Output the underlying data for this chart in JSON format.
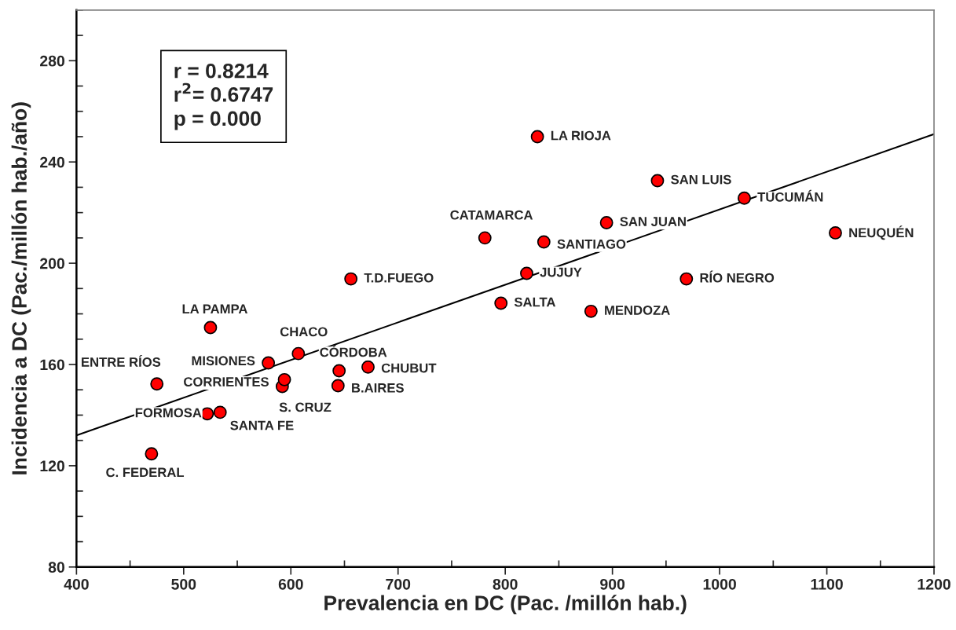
{
  "chart_data": {
    "type": "scatter",
    "xlabel": "Prevalencia en DC (Pac. /millón hab.)",
    "ylabel": "Incidencia a DC (Pac./millón hab./año)",
    "annotations": [
      "r = 0.8214\nr$^{2}$= 0.6747\np = 0.000"
    ],
    "xlim": [
      400,
      1200
    ],
    "ylim": [
      80,
      300
    ],
    "xticks": [
      400,
      {
        "value": 450,
        "label": null
      },
      500,
      {
        "value": 550,
        "label": null
      },
      600,
      {
        "value": 650,
        "label": null
      },
      700,
      {
        "value": 750,
        "label": null
      },
      800,
      {
        "value": 850,
        "label": null
      },
      900,
      {
        "value": 950,
        "label": null
      },
      1000,
      {
        "value": 1050,
        "label": null
      },
      1100,
      {
        "value": 1150,
        "label": null
      },
      1200
    ],
    "yticks": [
      80,
      {
        "value": 90,
        "label": null
      },
      {
        "value": 100,
        "label": null
      },
      {
        "value": 110,
        "label": null
      },
      120,
      {
        "value": 130,
        "label": null
      },
      {
        "value": 140,
        "label": null
      },
      {
        "value": 150,
        "label": null
      },
      160,
      {
        "value": 170,
        "label": null
      },
      {
        "value": 180,
        "label": null
      },
      {
        "value": 190,
        "label": null
      },
      200,
      {
        "value": 210,
        "label": null
      },
      {
        "value": 220,
        "label": null
      },
      {
        "value": 230,
        "label": null
      },
      240,
      {
        "value": 250,
        "label": null
      },
      {
        "value": 260,
        "label": null
      },
      {
        "value": 270,
        "label": null
      },
      280,
      {
        "value": 290,
        "label": null
      },
      {
        "value": 300,
        "label": null
      }
    ],
    "grid": false,
    "legend": false,
    "series": [
      {
        "color": "#ff0000",
        "marker": "circle",
        "x": [
          830,
          942,
          1023,
          1108,
          894.5,
          836,
          781,
          820,
          969,
          656,
          796,
          880,
          525,
          607,
          579,
          645,
          672,
          592,
          594,
          475,
          644,
          522,
          534,
          470
        ],
        "values": [
          250,
          232.6,
          225.7,
          212,
          216,
          208.4,
          210,
          196,
          193.8,
          193.8,
          184.2,
          181,
          174.6,
          164.3,
          160.6,
          157.5,
          159,
          151.3,
          154,
          152.3,
          151.6,
          140.5,
          141.1,
          124.7
        ],
        "value_labels": [
          "LA RIOJA",
          "SAN LUIS",
          "TUCUMÁN",
          "NEUQUÉN",
          "SAN JUAN",
          "SANTIAGO",
          "CATAMARCA",
          "JUJUY",
          "RÍO NEGRO",
          "T.D.FUEGO",
          "SALTA",
          "MENDOZA",
          "LA PAMPA",
          "CHACO",
          "MISIONES",
          "CÓRDOBA",
          "CHUBUT",
          "S. CRUZ",
          "CORRIENTES",
          "ENTRE RÍOS",
          "B.AIRES",
          "FORMOSA",
          "SANTA FE",
          "C. FEDERAL"
        ]
      },
      {
        "type": "line",
        "color": "#000000",
        "marker": "none",
        "line_style": "solid",
        "x": [
          400,
          1200
        ],
        "values": [
          132,
          251
        ]
      }
    ]
  }
}
